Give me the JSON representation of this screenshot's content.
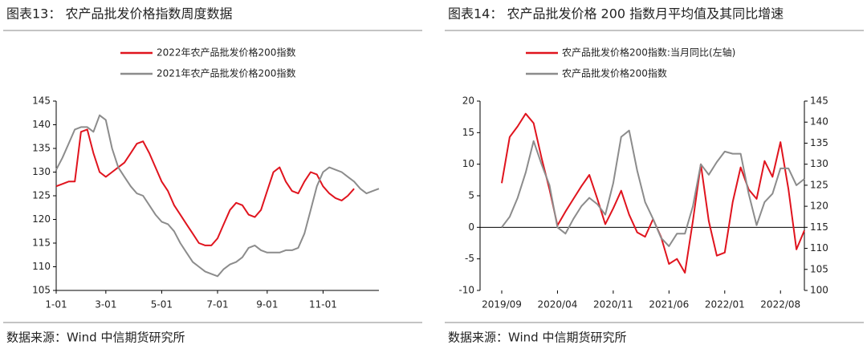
{
  "chart_data": [
    {
      "type": "line",
      "title": "图表13： 农产品批发价格指数周度数据",
      "source": "数据来源：Wind 中信期货研究所",
      "categories": [
        "1-01",
        null,
        null,
        null,
        null,
        null,
        null,
        null,
        "3-01",
        null,
        null,
        null,
        null,
        null,
        null,
        null,
        null,
        "5-01",
        null,
        null,
        null,
        null,
        null,
        null,
        null,
        null,
        "7-01",
        null,
        null,
        null,
        null,
        null,
        null,
        null,
        "9-01",
        null,
        null,
        null,
        null,
        null,
        null,
        null,
        null,
        "11-01",
        null,
        null,
        null,
        null,
        null,
        null,
        null,
        null,
        null
      ],
      "series": [
        {
          "name": "2022年农产品批发价格200指数",
          "color": "#e0141e",
          "values": [
            127,
            127.5,
            128,
            128,
            138.5,
            139,
            134,
            130,
            129,
            130,
            131,
            132,
            134,
            136,
            136.5,
            134,
            131,
            128,
            126,
            123,
            121,
            119,
            117,
            115,
            114.5,
            114.5,
            116,
            119,
            122,
            123.5,
            123,
            121,
            120.5,
            122,
            126,
            130,
            131,
            128,
            126,
            125.5,
            128,
            130,
            129.5,
            127,
            125.5,
            124.5,
            124,
            125,
            126.5,
            null,
            null,
            null,
            null
          ]
        },
        {
          "name": "2021年农产品批发价格200指数",
          "color": "#8c8c8c",
          "values": [
            130.5,
            133,
            136,
            139,
            139.5,
            139.5,
            138.5,
            142,
            141,
            135,
            131,
            129,
            127,
            125.5,
            125,
            123,
            121,
            119.5,
            119,
            117.5,
            115,
            113,
            111,
            110,
            109,
            108.5,
            108,
            109.5,
            110.5,
            111,
            112,
            114,
            114.5,
            113.5,
            113,
            113,
            113,
            113.5,
            113.5,
            114,
            117,
            122,
            127,
            130,
            131,
            130.5,
            130,
            129,
            128,
            126.5,
            125.5,
            126,
            126.5
          ]
        }
      ],
      "ylim": [
        105,
        145
      ],
      "yticks": [
        105,
        110,
        115,
        120,
        125,
        130,
        135,
        140,
        145
      ]
    },
    {
      "type": "line",
      "title": "图表14： 农产品批发价格 200 指数月平均值及其同比增速",
      "source": "数据来源：Wind 中信期货研究所",
      "categories": [
        "2019/09",
        null,
        null,
        null,
        null,
        null,
        null,
        "2020/04",
        null,
        null,
        null,
        null,
        null,
        null,
        "2020/11",
        null,
        null,
        null,
        null,
        null,
        null,
        "2021/06",
        null,
        null,
        null,
        null,
        null,
        null,
        "2022/01",
        null,
        null,
        null,
        null,
        null,
        null,
        "2022/08",
        null,
        null,
        null
      ],
      "series": [
        {
          "name": "农产品批发价格200指数:当月同比(左轴)",
          "color": "#e0141e",
          "values": [
            7,
            14.3,
            16,
            18,
            16.5,
            11,
            6,
            0.3,
            2.5,
            4.5,
            6.5,
            8.3,
            4.5,
            0.5,
            3,
            5.8,
            2,
            -0.8,
            -1.5,
            1.3,
            -1.5,
            -5.8,
            -5,
            -7.2,
            1,
            10,
            1,
            -4.5,
            -4,
            4,
            9.5,
            6,
            4.5,
            10.5,
            8,
            13.5,
            6,
            -3.5,
            -0.5
          ]
        },
        {
          "name": "农产品批发价格200指数",
          "color": "#8c8c8c",
          "axis": "y2",
          "values": [
            115,
            117.5,
            122,
            128,
            135.5,
            130,
            125,
            115,
            113.5,
            117,
            120,
            122,
            120.5,
            118,
            125.5,
            136.5,
            138,
            128.5,
            121,
            117,
            112.5,
            110.5,
            113.5,
            113.5,
            120,
            130,
            127.5,
            130.5,
            133,
            132.5,
            132.5,
            123,
            115.5,
            121,
            123,
            129,
            129,
            125,
            126.5
          ]
        }
      ],
      "ylim": [
        -10,
        20
      ],
      "yticks": [
        -10,
        -5,
        0,
        5,
        10,
        15,
        20
      ],
      "y2lim": [
        100,
        145
      ],
      "y2ticks": [
        100,
        105,
        110,
        115,
        120,
        125,
        130,
        135,
        140,
        145
      ]
    }
  ]
}
